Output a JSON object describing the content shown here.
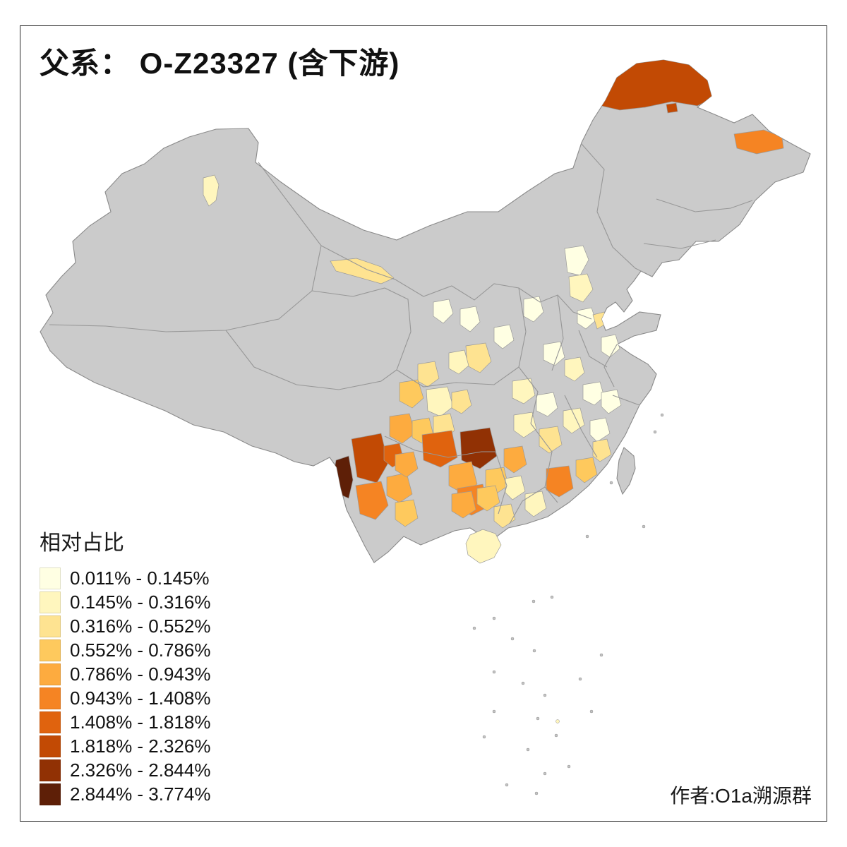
{
  "page": {
    "title": "父系： O-Z23327 (含下游)",
    "attribution": "作者:O1a溯源群"
  },
  "legend": {
    "title": "相对占比",
    "entries": [
      {
        "label": "0.011% - 0.145%",
        "color": "#FFFFE3"
      },
      {
        "label": "0.145% - 0.316%",
        "color": "#FFF6BE"
      },
      {
        "label": "0.316% - 0.552%",
        "color": "#FEE391"
      },
      {
        "label": "0.552% - 0.786%",
        "color": "#FEC95D"
      },
      {
        "label": "0.786% - 0.943%",
        "color": "#FDAB3F"
      },
      {
        "label": "0.943% - 1.408%",
        "color": "#F58423"
      },
      {
        "label": "1.408% - 1.818%",
        "color": "#E0630E"
      },
      {
        "label": "1.818% - 2.326%",
        "color": "#C24A04"
      },
      {
        "label": "2.326% - 2.844%",
        "color": "#913104"
      },
      {
        "label": "2.844% - 3.774%",
        "color": "#5E1F07"
      }
    ]
  },
  "map": {
    "base_fill": "#CBCBCB",
    "outline_color": "#8A8A8A",
    "border_color": "#979797",
    "islet_fill": "#C4C4C4",
    "sea_background": "#FFFFFF"
  }
}
